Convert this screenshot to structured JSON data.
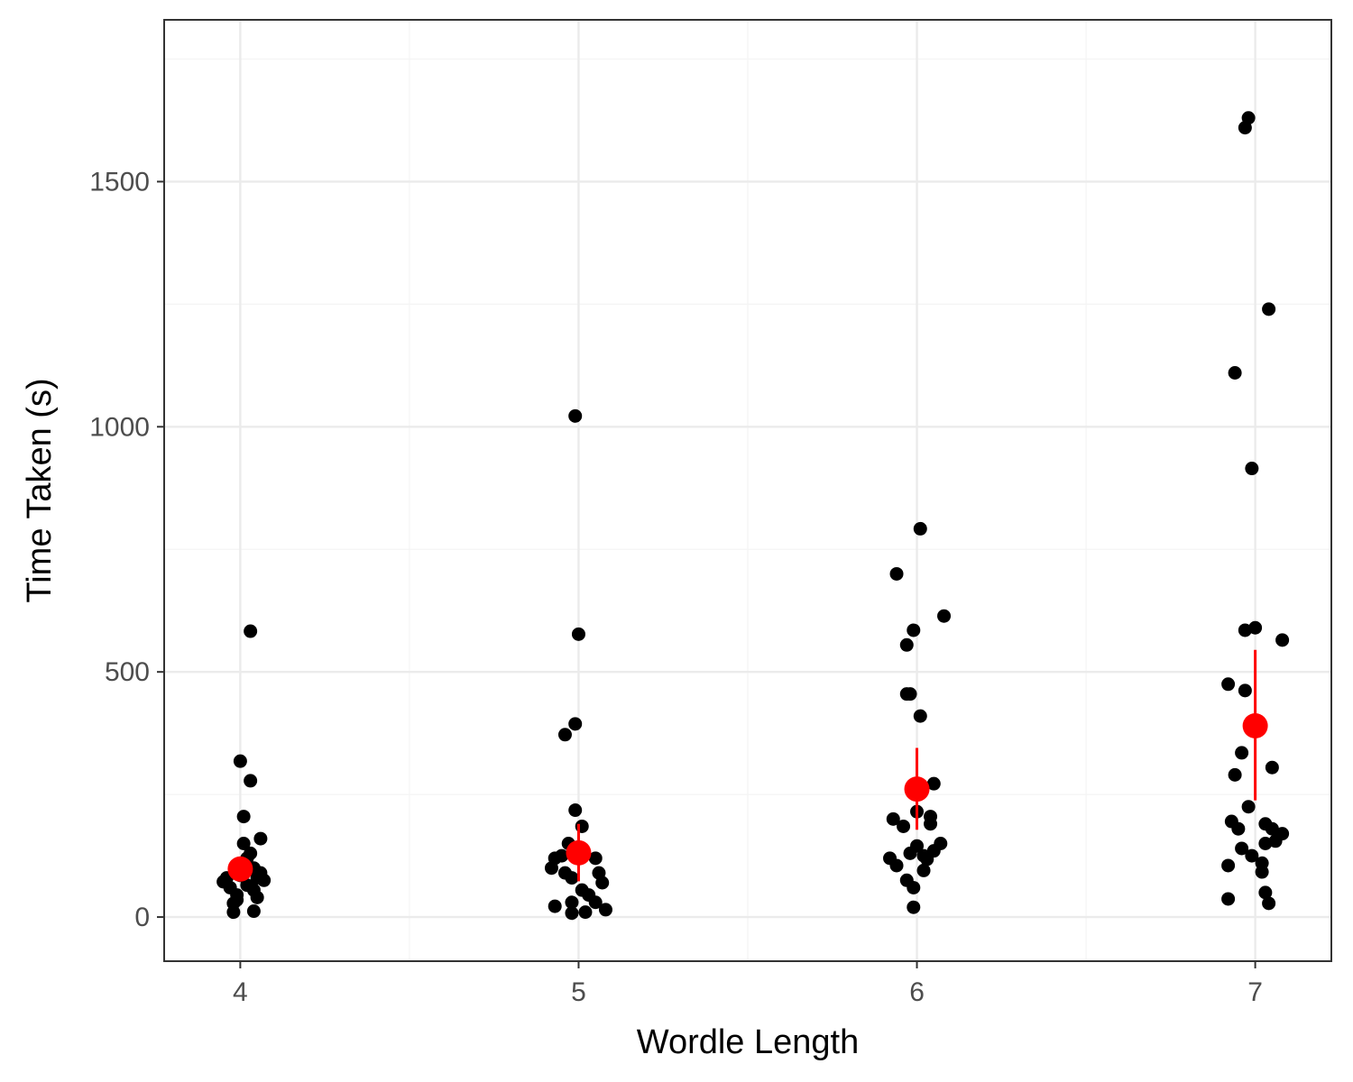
{
  "chart_data": {
    "type": "scatter",
    "xlabel": "Wordle Length",
    "ylabel": "Time Taken (s)",
    "categories": [
      "4",
      "5",
      "6",
      "7"
    ],
    "xlim": [
      3.775,
      7.225
    ],
    "ylim": [
      -90,
      1830
    ],
    "y_ticks": [
      0,
      500,
      1000,
      1500
    ],
    "y_minor_ticks": [
      250,
      750,
      1250,
      1750
    ],
    "grid": true,
    "colors": {
      "points": "#000000",
      "summary": "#ff0000",
      "grid_major": "#ebebeb",
      "grid_minor": "#f4f4f4",
      "panel_border": "#333333"
    },
    "points": [
      {
        "x": 3.95,
        "y": 72
      },
      {
        "x": 3.97,
        "y": 60
      },
      {
        "x": 3.99,
        "y": 45
      },
      {
        "x": 3.98,
        "y": 28
      },
      {
        "x": 3.98,
        "y": 10
      },
      {
        "x": 4.0,
        "y": 85
      },
      {
        "x": 4.01,
        "y": 95
      },
      {
        "x": 4.02,
        "y": 120
      },
      {
        "x": 4.03,
        "y": 130
      },
      {
        "x": 4.04,
        "y": 55
      },
      {
        "x": 4.05,
        "y": 40
      },
      {
        "x": 4.05,
        "y": 80
      },
      {
        "x": 4.06,
        "y": 90
      },
      {
        "x": 4.07,
        "y": 75
      },
      {
        "x": 4.06,
        "y": 160
      },
      {
        "x": 4.01,
        "y": 150
      },
      {
        "x": 4.01,
        "y": 205
      },
      {
        "x": 4.03,
        "y": 278
      },
      {
        "x": 4.0,
        "y": 318
      },
      {
        "x": 4.03,
        "y": 583
      },
      {
        "x": 4.04,
        "y": 12
      },
      {
        "x": 3.99,
        "y": 35
      },
      {
        "x": 4.02,
        "y": 65
      },
      {
        "x": 3.96,
        "y": 80
      },
      {
        "x": 4.04,
        "y": 100
      },
      {
        "x": 4.99,
        "y": 1022
      },
      {
        "x": 5.0,
        "y": 577
      },
      {
        "x": 4.99,
        "y": 394
      },
      {
        "x": 4.96,
        "y": 372
      },
      {
        "x": 4.99,
        "y": 218
      },
      {
        "x": 5.01,
        "y": 185
      },
      {
        "x": 4.97,
        "y": 150
      },
      {
        "x": 4.95,
        "y": 125
      },
      {
        "x": 4.93,
        "y": 120
      },
      {
        "x": 4.92,
        "y": 100
      },
      {
        "x": 4.96,
        "y": 90
      },
      {
        "x": 4.98,
        "y": 80
      },
      {
        "x": 5.01,
        "y": 55
      },
      {
        "x": 5.03,
        "y": 45
      },
      {
        "x": 5.05,
        "y": 30
      },
      {
        "x": 5.06,
        "y": 90
      },
      {
        "x": 5.07,
        "y": 70
      },
      {
        "x": 5.08,
        "y": 15
      },
      {
        "x": 4.98,
        "y": 8
      },
      {
        "x": 4.93,
        "y": 22
      },
      {
        "x": 5.02,
        "y": 10
      },
      {
        "x": 5.05,
        "y": 120
      },
      {
        "x": 4.98,
        "y": 30
      },
      {
        "x": 6.01,
        "y": 792
      },
      {
        "x": 5.94,
        "y": 700
      },
      {
        "x": 6.08,
        "y": 614
      },
      {
        "x": 5.99,
        "y": 585
      },
      {
        "x": 5.97,
        "y": 555
      },
      {
        "x": 5.97,
        "y": 455
      },
      {
        "x": 5.98,
        "y": 455
      },
      {
        "x": 6.01,
        "y": 410
      },
      {
        "x": 6.05,
        "y": 272
      },
      {
        "x": 6.0,
        "y": 215
      },
      {
        "x": 5.93,
        "y": 200
      },
      {
        "x": 6.04,
        "y": 205
      },
      {
        "x": 5.96,
        "y": 185
      },
      {
        "x": 6.04,
        "y": 190
      },
      {
        "x": 6.07,
        "y": 150
      },
      {
        "x": 6.0,
        "y": 145
      },
      {
        "x": 5.98,
        "y": 130
      },
      {
        "x": 6.02,
        "y": 125
      },
      {
        "x": 6.05,
        "y": 135
      },
      {
        "x": 5.92,
        "y": 120
      },
      {
        "x": 5.94,
        "y": 105
      },
      {
        "x": 6.02,
        "y": 95
      },
      {
        "x": 5.97,
        "y": 75
      },
      {
        "x": 5.99,
        "y": 60
      },
      {
        "x": 5.99,
        "y": 20
      },
      {
        "x": 6.03,
        "y": 118
      },
      {
        "x": 6.98,
        "y": 1630
      },
      {
        "x": 6.97,
        "y": 1610
      },
      {
        "x": 7.04,
        "y": 1240
      },
      {
        "x": 6.94,
        "y": 1110
      },
      {
        "x": 6.99,
        "y": 915
      },
      {
        "x": 6.97,
        "y": 585
      },
      {
        "x": 7.0,
        "y": 590
      },
      {
        "x": 7.08,
        "y": 565
      },
      {
        "x": 6.92,
        "y": 475
      },
      {
        "x": 6.97,
        "y": 462
      },
      {
        "x": 6.96,
        "y": 335
      },
      {
        "x": 7.05,
        "y": 305
      },
      {
        "x": 6.94,
        "y": 290
      },
      {
        "x": 6.98,
        "y": 225
      },
      {
        "x": 6.93,
        "y": 195
      },
      {
        "x": 6.95,
        "y": 180
      },
      {
        "x": 7.03,
        "y": 190
      },
      {
        "x": 7.05,
        "y": 180
      },
      {
        "x": 7.08,
        "y": 170
      },
      {
        "x": 7.06,
        "y": 155
      },
      {
        "x": 7.03,
        "y": 150
      },
      {
        "x": 6.96,
        "y": 140
      },
      {
        "x": 6.99,
        "y": 125
      },
      {
        "x": 7.02,
        "y": 110
      },
      {
        "x": 6.92,
        "y": 105
      },
      {
        "x": 7.02,
        "y": 92
      },
      {
        "x": 7.03,
        "y": 50
      },
      {
        "x": 6.92,
        "y": 37
      },
      {
        "x": 7.04,
        "y": 28
      }
    ],
    "summary": [
      {
        "x": 4,
        "mean": 98,
        "lower": 80,
        "upper": 118
      },
      {
        "x": 5,
        "mean": 131,
        "lower": 73,
        "upper": 190
      },
      {
        "x": 6,
        "mean": 261,
        "lower": 178,
        "upper": 345
      },
      {
        "x": 7,
        "mean": 390,
        "lower": 238,
        "upper": 545
      }
    ]
  }
}
